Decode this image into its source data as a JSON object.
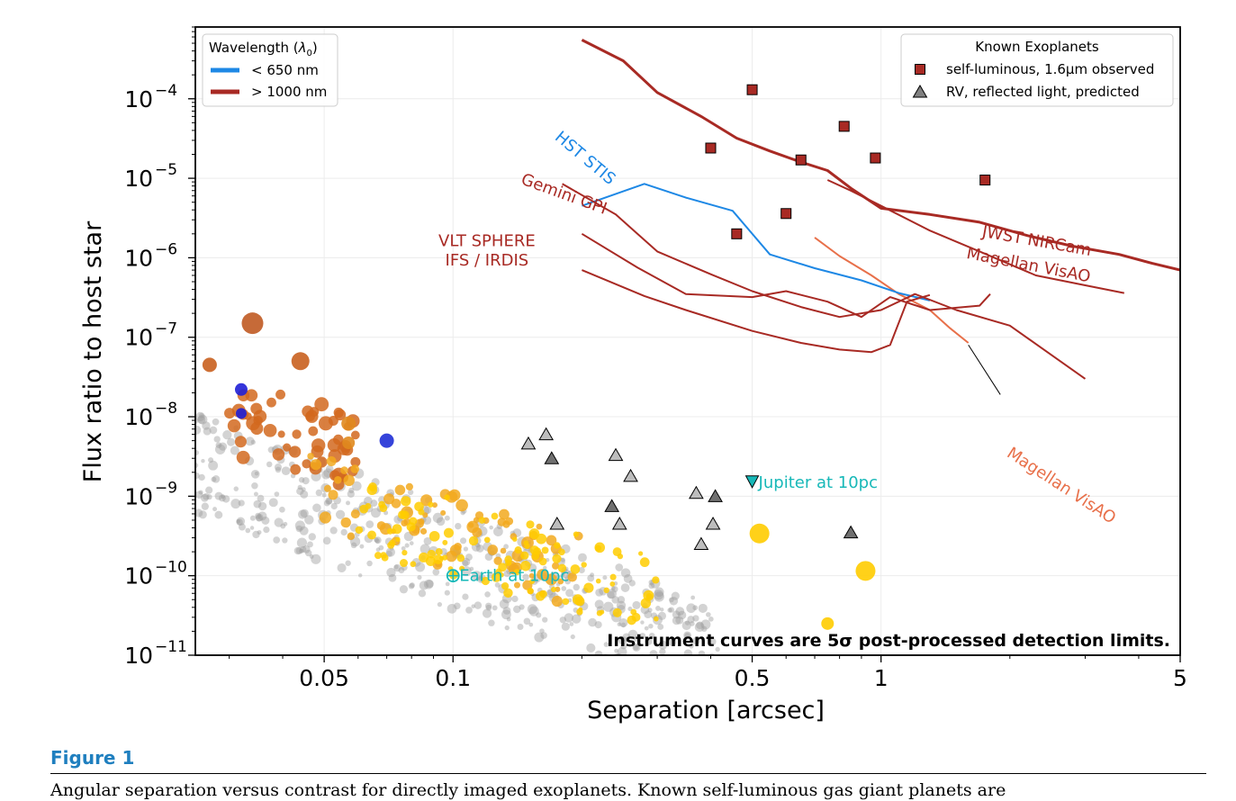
{
  "chart_data": {
    "type": "scatter",
    "xlabel": "Separation [arcsec]",
    "ylabel": "Flux ratio to host star",
    "xscale": "log",
    "yscale": "log",
    "xlim": [
      0.025,
      5
    ],
    "ylim": [
      1e-11,
      0.0008
    ],
    "x_ticks": [
      {
        "value": 0.05,
        "label": "0.05"
      },
      {
        "value": 0.1,
        "label": "0.1"
      },
      {
        "value": 0.5,
        "label": "0.5"
      },
      {
        "value": 1,
        "label": "1"
      },
      {
        "value": 5,
        "label": "5"
      }
    ],
    "y_ticks": [
      {
        "value": 1e-11,
        "exp": "−11"
      },
      {
        "value": 1e-10,
        "exp": "−10"
      },
      {
        "value": 1e-09,
        "exp": "−9"
      },
      {
        "value": 1e-08,
        "exp": "−8"
      },
      {
        "value": 1e-07,
        "exp": "−7"
      },
      {
        "value": 1e-06,
        "exp": "−6"
      },
      {
        "value": 1e-05,
        "exp": "−5"
      },
      {
        "value": 0.0001,
        "exp": "−4"
      }
    ],
    "grid": true,
    "legend_wavelength": {
      "title_main": "Wavelength (",
      "title_sym": "λ",
      "title_sub": "0",
      "title_end": ")",
      "placement": "top-left",
      "entries": [
        {
          "label": "< 650 nm",
          "color": "#1e88e5"
        },
        {
          "label": "> 1000 nm",
          "color": "#a82a24"
        }
      ]
    },
    "legend_known": {
      "title": "Known Exoplanets",
      "placement": "top-right",
      "entries": [
        {
          "label": "self-luminous, 1.6μm observed",
          "marker": "square",
          "color": "#a82a24"
        },
        {
          "label": "RV, reflected light, predicted",
          "marker": "triangle",
          "color": "#808080"
        }
      ]
    },
    "instrument_curves": [
      {
        "label": "JWST NIRCam",
        "color": "#a82a24",
        "width": 3,
        "points": [
          [
            0.2,
            0.00055
          ],
          [
            0.25,
            0.0003
          ],
          [
            0.3,
            0.00012
          ],
          [
            0.38,
            6e-05
          ],
          [
            0.46,
            3.2e-05
          ],
          [
            0.55,
            2.2e-05
          ],
          [
            0.65,
            1.6e-05
          ],
          [
            0.75,
            1.25e-05
          ],
          [
            0.85,
            7.5e-06
          ],
          [
            1,
            4.2e-06
          ],
          [
            1.3,
            3.5e-06
          ],
          [
            1.7,
            2.8e-06
          ],
          [
            2.2,
            1.9e-06
          ],
          [
            2.8,
            1.4e-06
          ],
          [
            3.6,
            1.1e-06
          ],
          [
            4.3,
            8.5e-07
          ],
          [
            5,
            7e-07
          ]
        ]
      },
      {
        "label": "Magellan VisAO",
        "color": "#a82a24",
        "width": 2,
        "points": [
          [
            0.75,
            9.5e-06
          ],
          [
            0.85,
            7e-06
          ],
          [
            1,
            4.5e-06
          ],
          [
            1.3,
            2.2e-06
          ],
          [
            1.7,
            1.2e-06
          ],
          [
            2.3,
            6e-07
          ],
          [
            3,
            4.5e-07
          ],
          [
            3.7,
            3.6e-07
          ]
        ]
      },
      {
        "label": "Magellan VisAO",
        "color": "#e8704a",
        "width": 2,
        "points": [
          [
            0.7,
            1.8e-06
          ],
          [
            0.8,
            1.05e-06
          ],
          [
            0.95,
            6e-07
          ],
          [
            1.1,
            3.5e-07
          ],
          [
            1.3,
            2.2e-07
          ],
          [
            1.45,
            1.3e-07
          ],
          [
            1.6,
            8.5e-08
          ]
        ]
      },
      {
        "label": "HST STIS",
        "color": "#1e88e5",
        "width": 2,
        "points": [
          [
            0.2,
            4.5e-06
          ],
          [
            0.28,
            8.5e-06
          ],
          [
            0.35,
            5.7e-06
          ],
          [
            0.45,
            3.9e-06
          ],
          [
            0.55,
            1.1e-06
          ],
          [
            0.7,
            7.4e-07
          ],
          [
            0.9,
            5.2e-07
          ],
          [
            1.1,
            3.6e-07
          ],
          [
            1.3,
            2.9e-07
          ]
        ]
      },
      {
        "label": "Gemini GPI",
        "color": "#a82a24",
        "width": 2,
        "points": [
          [
            0.18,
            8.5e-06
          ],
          [
            0.24,
            3.5e-06
          ],
          [
            0.3,
            1.2e-06
          ],
          [
            0.4,
            6.2e-07
          ],
          [
            0.5,
            3.8e-07
          ],
          [
            0.65,
            2.4e-07
          ],
          [
            0.8,
            1.8e-07
          ],
          [
            1.0,
            2.2e-07
          ],
          [
            1.2,
            3.5e-07
          ],
          [
            1.5,
            2.2e-07
          ],
          [
            2,
            1.4e-07
          ],
          [
            3,
            3e-08
          ]
        ]
      },
      {
        "label": "VLT SPHERE",
        "color": "#a82a24",
        "width": 2,
        "points": [
          [
            0.2,
            2e-06
          ],
          [
            0.27,
            7.5e-07
          ],
          [
            0.35,
            3.5e-07
          ],
          [
            0.5,
            3.2e-07
          ],
          [
            0.6,
            3.8e-07
          ],
          [
            0.75,
            2.8e-07
          ],
          [
            0.9,
            1.8e-07
          ],
          [
            1.05,
            3.2e-07
          ],
          [
            1.3,
            2.2e-07
          ],
          [
            1.7,
            2.5e-07
          ],
          [
            1.8,
            3.5e-07
          ]
        ]
      },
      {
        "label": "VLT SPHERE inner",
        "color": "#a82a24",
        "width": 2,
        "points": [
          [
            0.2,
            7e-07
          ],
          [
            0.28,
            3.3e-07
          ],
          [
            0.35,
            2.2e-07
          ],
          [
            0.5,
            1.2e-07
          ],
          [
            0.65,
            8.5e-08
          ],
          [
            0.8,
            7e-08
          ],
          [
            0.95,
            6.5e-08
          ],
          [
            1.05,
            8e-08
          ],
          [
            1.15,
            2.8e-07
          ],
          [
            1.3,
            3.4e-07
          ]
        ]
      }
    ],
    "curve_labels": [
      {
        "text": "JWST NIRCam",
        "color": "#a82a24",
        "at": [
          2.3,
          1.4e-06
        ],
        "rotate": 10
      },
      {
        "text": "Magellan VisAO",
        "color": "#a82a24",
        "at": [
          2.2,
          7e-07
        ],
        "rotate": 11
      },
      {
        "text": "HST STIS",
        "color": "#1e88e5",
        "at": [
          0.2,
          1.6e-05
        ],
        "rotate": 40
      },
      {
        "text": "Gemini GPI",
        "color": "#a82a24",
        "at": [
          0.18,
          5.5e-06
        ],
        "rotate": 20
      },
      {
        "text": "VLT SPHERE",
        "color": "#a82a24",
        "at": [
          0.12,
          1.4e-06
        ],
        "rotate": 0
      },
      {
        "text": "IFS / IRDIS",
        "color": "#a82a24",
        "at": [
          0.12,
          8e-07
        ],
        "rotate": 0
      },
      {
        "text": "Magellan VisAO",
        "color": "#e8704a",
        "at": [
          2.6,
          1.2e-09
        ],
        "rotate": 33
      }
    ],
    "visao_pointer": {
      "from": [
        1.6,
        8e-08
      ],
      "to": [
        1.9,
        1.9e-08
      ],
      "color": "#000000"
    },
    "known_self_luminous": [
      [
        0.5,
        0.00013
      ],
      [
        0.4,
        2.4e-05
      ],
      [
        0.65,
        1.7e-05
      ],
      [
        0.82,
        4.5e-05
      ],
      [
        0.97,
        1.8e-05
      ],
      [
        1.75,
        9.5e-06
      ],
      [
        0.6,
        3.6e-06
      ],
      [
        0.46,
        2e-06
      ]
    ],
    "known_rv": [
      [
        0.15,
        4.6e-09
      ],
      [
        0.165,
        6e-09
      ],
      [
        0.17,
        3e-09
      ],
      [
        0.24,
        3.3e-09
      ],
      [
        0.26,
        1.8e-09
      ],
      [
        0.235,
        7.5e-10
      ],
      [
        0.245,
        4.5e-10
      ],
      [
        0.37,
        1.1e-09
      ],
      [
        0.41,
        1e-09
      ],
      [
        0.405,
        4.5e-10
      ],
      [
        0.38,
        2.5e-10
      ],
      [
        0.85,
        3.5e-10
      ],
      [
        0.175,
        4.5e-10
      ]
    ],
    "reference_points": [
      {
        "label": "Jupiter at 10pc",
        "x": 0.5,
        "y": 1.5e-09,
        "marker": "triangle-down",
        "color": "#17b8b8"
      },
      {
        "label": "Earth at 10pc",
        "x": 0.1,
        "y": 1e-10,
        "marker": "earth",
        "color": "#17b8b8"
      }
    ],
    "annotation": "Instrument curves are 5σ post-processed detection limits.",
    "simulated_population": {
      "description_colors": [
        "#b0b0b0",
        "#ffcc00",
        "#f2a91f",
        "#e08a1e",
        "#c8611f",
        "#1f2fd6"
      ]
    },
    "big_points": [
      {
        "x": 0.034,
        "y": 1.5e-07,
        "r": 12,
        "color": "#c05a22"
      },
      {
        "x": 0.044,
        "y": 5e-08,
        "r": 10,
        "color": "#c9601f"
      },
      {
        "x": 0.027,
        "y": 4.5e-08,
        "r": 8,
        "color": "#c9601f"
      },
      {
        "x": 0.032,
        "y": 2.2e-08,
        "r": 7,
        "color": "#1f1fd6"
      },
      {
        "x": 0.032,
        "y": 1.1e-08,
        "r": 6,
        "color": "#1f1fd6"
      },
      {
        "x": 0.07,
        "y": 5e-09,
        "r": 8,
        "color": "#1f2fd6"
      },
      {
        "x": 0.52,
        "y": 3.4e-10,
        "r": 11,
        "color": "#ffcc00"
      },
      {
        "x": 0.92,
        "y": 1.15e-10,
        "r": 11,
        "color": "#ffcc00"
      },
      {
        "x": 0.75,
        "y": 2.5e-11,
        "r": 7,
        "color": "#ffcc00"
      },
      {
        "x": 0.057,
        "y": 8.2e-09,
        "r": 8,
        "color": "#e08a1e"
      },
      {
        "x": 0.057,
        "y": 4.7e-09,
        "r": 7,
        "color": "#e08a1e"
      }
    ]
  },
  "figure": {
    "label": "Figure 1",
    "caption": "Angular separation versus contrast for directly imaged exoplanets. Known self-luminous gas giant planets are"
  }
}
